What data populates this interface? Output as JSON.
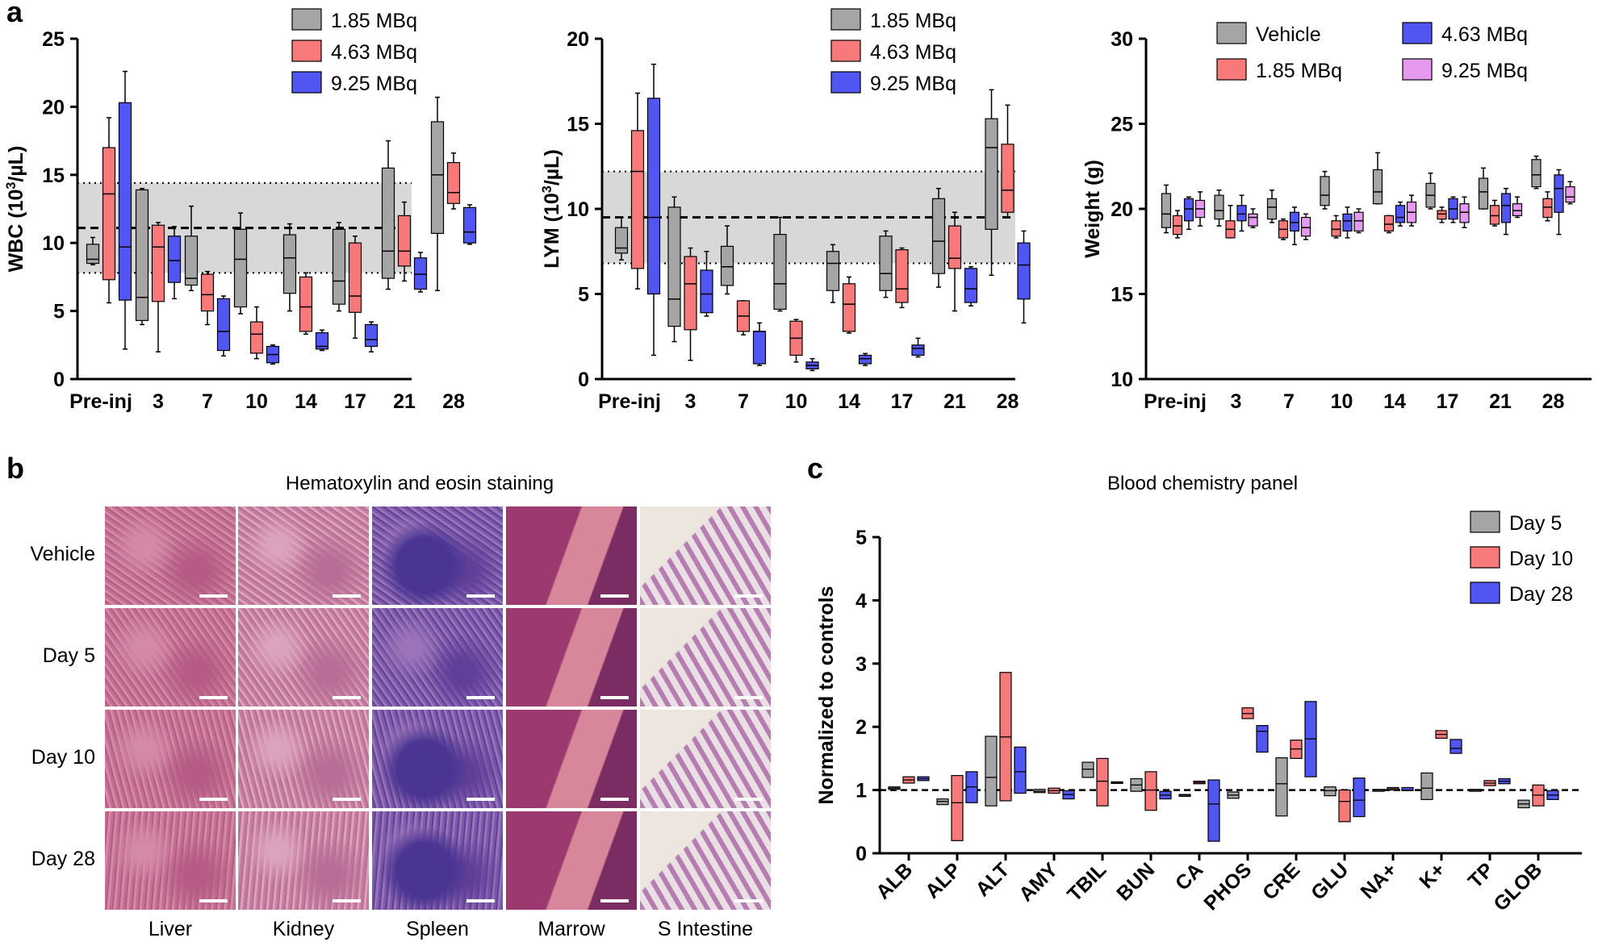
{
  "panel_labels": {
    "a": "a",
    "b": "b",
    "c": "c"
  },
  "colors": {
    "gray": "#a5a5a5",
    "red": "#f7797a",
    "blue": "#5156f2",
    "violet": "#e59af0",
    "ref_band": "#d8d8d8"
  },
  "chart_data": [
    {
      "id": "wbc",
      "type": "boxplot",
      "ylabel": "WBC (10³/µL)",
      "ylim": [
        0,
        25
      ],
      "yticks": [
        0,
        5,
        10,
        15,
        20,
        25
      ],
      "categories": [
        "Pre-inj",
        "3",
        "7",
        "10",
        "14",
        "17",
        "21",
        "28"
      ],
      "reference": {
        "mean": 11.1,
        "low": 7.8,
        "high": 14.4
      },
      "legend": [
        "1.85 MBq",
        "4.63 MBq",
        "9.25 MBq"
      ],
      "series": [
        {
          "name": "1.85 MBq",
          "color": "gray",
          "boxes": [
            [
              8.4,
              8.5,
              8.8,
              9.9,
              10.4
            ],
            [
              4.0,
              4.3,
              6.0,
              13.9,
              14.0
            ],
            [
              6.5,
              6.9,
              7.4,
              10.5,
              12.7
            ],
            [
              4.8,
              5.3,
              8.8,
              11.0,
              12.2
            ],
            [
              5.0,
              6.3,
              8.9,
              10.6,
              11.4
            ],
            [
              5.0,
              5.5,
              7.2,
              11.0,
              11.5
            ],
            [
              6.6,
              7.4,
              9.4,
              15.5,
              17.5
            ],
            [
              6.5,
              10.7,
              15.0,
              18.9,
              20.7
            ]
          ]
        },
        {
          "name": "4.63 MBq",
          "color": "red",
          "boxes": [
            [
              5.6,
              7.3,
              13.6,
              17.0,
              19.2
            ],
            [
              2.0,
              5.7,
              9.7,
              11.3,
              11.5
            ],
            [
              4.0,
              5.0,
              6.2,
              7.7,
              7.9
            ],
            [
              1.5,
              1.9,
              3.3,
              4.2,
              5.3
            ],
            [
              3.3,
              3.5,
              5.3,
              7.5,
              7.8
            ],
            [
              3.0,
              4.9,
              6.1,
              10.0,
              10.5
            ],
            [
              7.2,
              8.3,
              9.4,
              12.0,
              13.0
            ],
            [
              12.5,
              12.9,
              13.7,
              15.9,
              16.6
            ]
          ]
        },
        {
          "name": "9.25 MBq",
          "color": "blue",
          "boxes": [
            [
              2.2,
              5.8,
              9.7,
              20.3,
              22.6
            ],
            [
              5.9,
              7.1,
              8.7,
              10.5,
              11.2
            ],
            [
              1.7,
              2.1,
              3.5,
              5.9,
              6.1
            ],
            [
              1.1,
              1.2,
              1.8,
              2.4,
              2.5
            ],
            [
              2.1,
              2.2,
              2.4,
              3.4,
              3.6
            ],
            [
              2.0,
              2.4,
              2.9,
              4.0,
              4.2
            ],
            [
              6.4,
              6.6,
              7.7,
              8.9,
              9.3
            ],
            [
              9.9,
              10.0,
              10.8,
              12.6,
              12.8
            ]
          ]
        }
      ]
    },
    {
      "id": "lym",
      "type": "boxplot",
      "ylabel": "LYM (10³/µL)",
      "ylim": [
        0,
        20
      ],
      "yticks": [
        0,
        5,
        10,
        15,
        20
      ],
      "categories": [
        "Pre-inj",
        "3",
        "7",
        "10",
        "14",
        "17",
        "21",
        "28"
      ],
      "reference": {
        "mean": 9.5,
        "low": 6.8,
        "high": 12.2
      },
      "legend": [
        "1.85 MBq",
        "4.63 MBq",
        "9.25 MBq"
      ],
      "series": [
        {
          "name": "1.85 MBq",
          "color": "gray",
          "boxes": [
            [
              7.0,
              7.4,
              7.7,
              8.9,
              9.5
            ],
            [
              2.2,
              3.1,
              4.7,
              10.1,
              10.7
            ],
            [
              5.0,
              5.5,
              6.6,
              7.8,
              9.0
            ],
            [
              4.0,
              4.1,
              5.6,
              8.5,
              9.5
            ],
            [
              4.5,
              5.2,
              6.8,
              7.5,
              7.9
            ],
            [
              4.8,
              5.2,
              6.2,
              8.4,
              8.7
            ],
            [
              5.4,
              6.2,
              8.1,
              10.6,
              11.2
            ],
            [
              6.1,
              8.8,
              13.6,
              15.3,
              17.0
            ]
          ]
        },
        {
          "name": "4.63 MBq",
          "color": "red",
          "boxes": [
            [
              5.3,
              6.5,
              12.2,
              14.6,
              16.8
            ],
            [
              1.1,
              2.9,
              5.6,
              7.2,
              7.7
            ],
            [
              2.6,
              2.8,
              3.7,
              4.6,
              4.6
            ],
            [
              1.0,
              1.4,
              2.4,
              3.4,
              3.5
            ],
            [
              2.7,
              2.8,
              4.4,
              5.6,
              6.0
            ],
            [
              4.2,
              4.5,
              5.3,
              7.6,
              7.7
            ],
            [
              4.0,
              6.5,
              7.1,
              9.0,
              9.8
            ],
            [
              9.5,
              9.8,
              11.1,
              13.8,
              16.1
            ]
          ]
        },
        {
          "name": "9.25 MBq",
          "color": "blue",
          "boxes": [
            [
              1.4,
              5.0,
              9.5,
              16.5,
              18.5
            ],
            [
              3.7,
              3.9,
              5.0,
              6.4,
              7.5
            ],
            [
              0.8,
              0.9,
              2.8,
              2.8,
              3.3
            ],
            [
              0.5,
              0.6,
              0.8,
              1.0,
              1.2
            ],
            [
              0.8,
              0.9,
              1.2,
              1.4,
              1.5
            ],
            [
              1.3,
              1.4,
              1.8,
              2.0,
              2.4
            ],
            [
              4.3,
              4.5,
              5.3,
              6.5,
              6.6
            ],
            [
              3.3,
              4.7,
              6.7,
              8.0,
              8.7
            ]
          ]
        }
      ]
    },
    {
      "id": "weight",
      "type": "boxplot",
      "ylabel": "Weight (g)",
      "ylim": [
        10,
        30
      ],
      "yticks": [
        10,
        15,
        20,
        25,
        30
      ],
      "categories": [
        "Pre-inj",
        "3",
        "7",
        "10",
        "14",
        "17",
        "21",
        "28"
      ],
      "legend": [
        "Vehicle",
        "1.85 MBq",
        "4.63 MBq",
        "9.25 MBq"
      ],
      "series": [
        {
          "name": "Vehicle",
          "color": "gray",
          "boxes": [
            [
              18.6,
              18.9,
              19.7,
              20.9,
              21.4
            ],
            [
              19.0,
              19.4,
              19.9,
              20.8,
              21.1
            ],
            [
              19.2,
              19.4,
              20.1,
              20.6,
              21.1
            ],
            [
              20.0,
              20.2,
              20.8,
              21.9,
              22.2
            ],
            [
              20.3,
              20.3,
              21.0,
              22.3,
              23.3
            ],
            [
              20.0,
              20.1,
              20.8,
              21.5,
              22.1
            ],
            [
              20.0,
              20.0,
              21.0,
              21.8,
              22.4
            ],
            [
              21.2,
              21.3,
              22.0,
              22.9,
              23.1
            ]
          ]
        },
        {
          "name": "1.85 MBq",
          "color": "red",
          "boxes": [
            [
              18.3,
              18.5,
              19.0,
              19.6,
              19.9
            ],
            [
              18.3,
              18.3,
              18.8,
              19.3,
              20.2
            ],
            [
              18.2,
              18.3,
              18.8,
              19.3,
              19.4
            ],
            [
              18.3,
              18.4,
              18.8,
              19.3,
              19.6
            ],
            [
              18.6,
              18.7,
              19.1,
              19.6,
              19.6
            ],
            [
              19.2,
              19.4,
              19.7,
              19.9,
              20.1
            ],
            [
              19.0,
              19.1,
              19.6,
              20.2,
              20.5
            ],
            [
              19.3,
              19.5,
              20.1,
              20.6,
              21.0
            ]
          ]
        },
        {
          "name": "4.63 MBq",
          "color": "blue",
          "boxes": [
            [
              18.8,
              19.3,
              20.0,
              20.6,
              20.7
            ],
            [
              18.7,
              19.3,
              19.7,
              20.2,
              20.8
            ],
            [
              17.9,
              18.7,
              19.2,
              19.8,
              20.1
            ],
            [
              18.3,
              18.7,
              19.3,
              19.7,
              20.1
            ],
            [
              19.0,
              19.2,
              19.5,
              20.2,
              20.4
            ],
            [
              19.2,
              19.4,
              20.0,
              20.6,
              20.7
            ],
            [
              18.5,
              19.2,
              20.2,
              20.9,
              21.2
            ],
            [
              18.5,
              19.8,
              21.2,
              22.0,
              22.3
            ]
          ]
        },
        {
          "name": "9.25 MBq",
          "color": "violet",
          "boxes": [
            [
              19.0,
              19.5,
              20.0,
              20.5,
              21.0
            ],
            [
              18.9,
              19.0,
              19.5,
              19.7,
              20.0
            ],
            [
              18.2,
              18.4,
              18.9,
              19.5,
              19.7
            ],
            [
              18.6,
              18.7,
              19.3,
              19.8,
              20.0
            ],
            [
              19.0,
              19.2,
              19.8,
              20.4,
              20.8
            ],
            [
              18.9,
              19.2,
              19.8,
              20.3,
              20.7
            ],
            [
              19.5,
              19.6,
              19.9,
              20.3,
              20.7
            ],
            [
              20.3,
              20.4,
              20.7,
              21.3,
              21.6
            ]
          ]
        }
      ]
    },
    {
      "id": "chem",
      "type": "floating-bar",
      "title": "Blood chemistry panel",
      "ylabel": "Normalized to controls",
      "ylim": [
        0,
        5
      ],
      "yticks": [
        0,
        1,
        2,
        3,
        4,
        5
      ],
      "reference": {
        "mean": 1.0
      },
      "categories": [
        "ALB",
        "ALP",
        "ALT",
        "AMY",
        "TBIL",
        "BUN",
        "CA",
        "PHOS",
        "CRE",
        "GLU",
        "NA+",
        "K+",
        "TP",
        "GLOB"
      ],
      "legend": [
        "Day 5",
        "Day 10",
        "Day 28"
      ],
      "series": [
        {
          "name": "Day 5",
          "color": "gray",
          "ranges": [
            [
              1.01,
              1.05,
              1.03
            ],
            [
              0.77,
              0.86,
              0.82
            ],
            [
              0.75,
              1.85,
              1.2
            ],
            [
              0.96,
              1.01,
              0.98
            ],
            [
              1.2,
              1.44,
              1.33
            ],
            [
              0.98,
              1.18,
              1.08
            ],
            [
              0.9,
              0.93,
              0.92
            ],
            [
              0.87,
              0.97,
              0.92
            ],
            [
              0.59,
              1.51,
              1.1
            ],
            [
              0.91,
              1.05,
              0.99
            ],
            [
              0.98,
              1.01,
              1.0
            ],
            [
              0.85,
              1.27,
              1.03
            ],
            [
              0.98,
              1.01,
              1.0
            ],
            [
              0.72,
              0.84,
              0.78
            ]
          ]
        },
        {
          "name": "Day 10",
          "color": "red",
          "ranges": [
            [
              1.11,
              1.21,
              1.16
            ],
            [
              0.2,
              1.23,
              0.8
            ],
            [
              0.83,
              2.86,
              1.84
            ],
            [
              0.95,
              1.03,
              0.99
            ],
            [
              0.75,
              1.5,
              1.14
            ],
            [
              0.68,
              1.29,
              1.0
            ],
            [
              1.1,
              1.14,
              1.12
            ],
            [
              2.13,
              2.3,
              2.21
            ],
            [
              1.5,
              1.79,
              1.65
            ],
            [
              0.5,
              1.0,
              0.82
            ],
            [
              1.0,
              1.04,
              1.02
            ],
            [
              1.82,
              1.94,
              1.88
            ],
            [
              1.07,
              1.15,
              1.11
            ],
            [
              0.75,
              1.08,
              0.92
            ]
          ]
        },
        {
          "name": "Day 28",
          "color": "blue",
          "ranges": [
            [
              1.15,
              1.21,
              1.18
            ],
            [
              0.8,
              1.29,
              1.05
            ],
            [
              0.95,
              1.68,
              1.29
            ],
            [
              0.86,
              0.99,
              0.93
            ],
            [
              1.11,
              1.13,
              1.12
            ],
            [
              0.86,
              0.98,
              0.92
            ],
            [
              0.19,
              1.16,
              0.78
            ],
            [
              1.6,
              2.02,
              1.93
            ],
            [
              1.21,
              2.4,
              1.81
            ],
            [
              0.58,
              1.19,
              0.84
            ],
            [
              0.99,
              1.04,
              1.0
            ],
            [
              1.58,
              1.8,
              1.66
            ],
            [
              1.1,
              1.18,
              1.14
            ],
            [
              0.85,
              0.99,
              0.92
            ]
          ]
        }
      ]
    }
  ],
  "histology": {
    "title": "Hematoxylin and eosin staining",
    "rows": [
      "Vehicle",
      "Day 5",
      "Day 10",
      "Day 28"
    ],
    "columns": [
      "Liver",
      "Kidney",
      "Spleen",
      "Marrow",
      "S Intestine"
    ]
  }
}
